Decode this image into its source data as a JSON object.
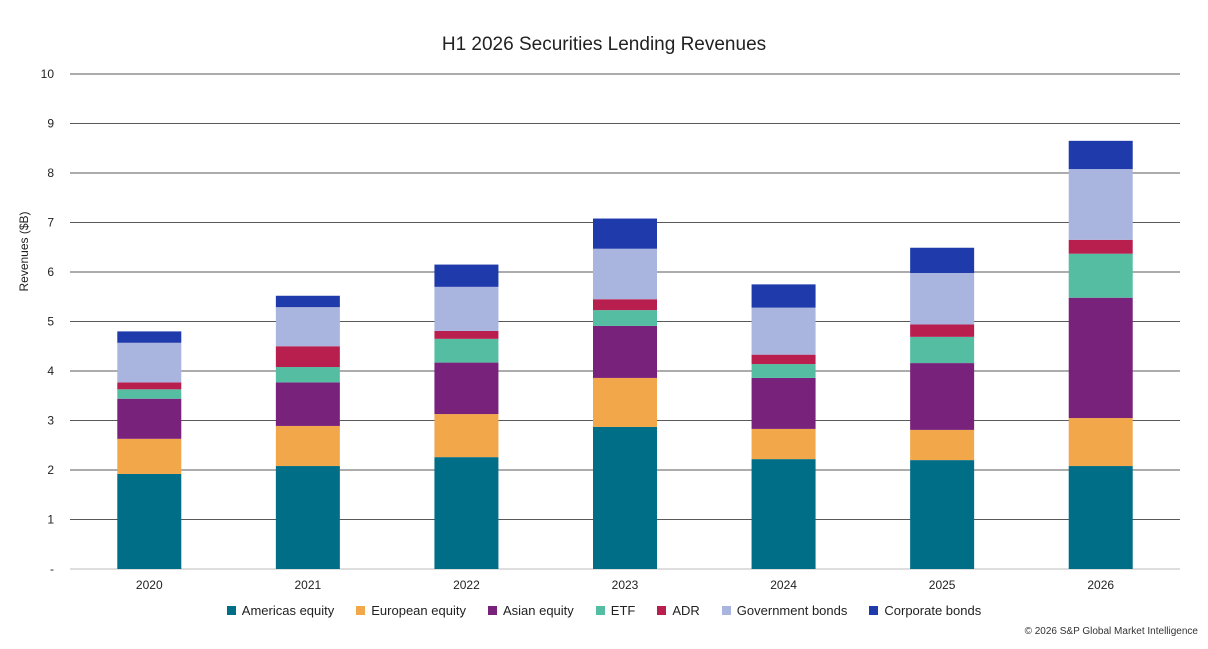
{
  "chart_data": {
    "type": "bar",
    "stacked": true,
    "title": "H1 2026 Securities Lending Revenues",
    "xlabel": "",
    "ylabel": "Revenues ($B)",
    "ylim": [
      0,
      10
    ],
    "yticks": [
      "-",
      "1",
      "2",
      "3",
      "4",
      "5",
      "6",
      "7",
      "8",
      "9",
      "10"
    ],
    "grid": true,
    "legend_position": "bottom",
    "categories": [
      "2020",
      "2021",
      "2022",
      "2023",
      "2024",
      "2025",
      "2026"
    ],
    "series": [
      {
        "name": "Americas equity",
        "color": "#006e87",
        "values": [
          1.92,
          2.08,
          2.26,
          2.87,
          2.22,
          2.2,
          2.08
        ]
      },
      {
        "name": "European equity",
        "color": "#f2a74b",
        "values": [
          0.71,
          0.81,
          0.87,
          0.99,
          0.61,
          0.61,
          0.97
        ]
      },
      {
        "name": "Asian equity",
        "color": "#78227b",
        "values": [
          0.81,
          0.88,
          1.04,
          1.05,
          1.03,
          1.35,
          2.43
        ]
      },
      {
        "name": "ETF",
        "color": "#55bda2",
        "values": [
          0.19,
          0.31,
          0.48,
          0.32,
          0.28,
          0.53,
          0.89
        ]
      },
      {
        "name": "ADR",
        "color": "#b81f4f",
        "values": [
          0.14,
          0.42,
          0.16,
          0.22,
          0.19,
          0.25,
          0.28
        ]
      },
      {
        "name": "Government bonds",
        "color": "#a9b4df",
        "values": [
          0.8,
          0.79,
          0.89,
          1.02,
          0.95,
          1.04,
          1.43
        ]
      },
      {
        "name": "Corporate bonds",
        "color": "#1f3aaa",
        "values": [
          0.23,
          0.23,
          0.45,
          0.61,
          0.47,
          0.51,
          0.57
        ]
      }
    ]
  },
  "footer": {
    "copyright": "© 2026 S&P Global Market Intelligence"
  }
}
